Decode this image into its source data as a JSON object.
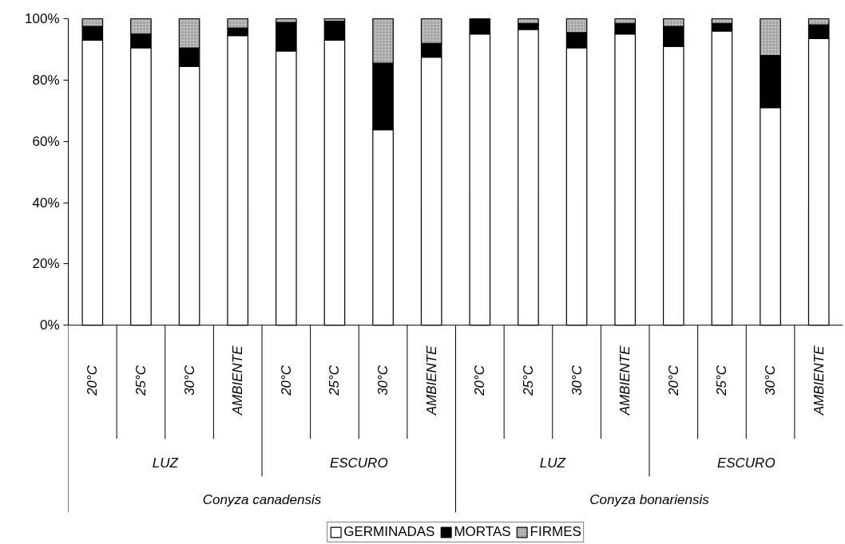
{
  "chart_data": {
    "type": "bar",
    "stacked": true,
    "categories": [
      "20°C",
      "25°C",
      "30°C",
      "AMBIENTE",
      "20°C",
      "25°C",
      "30°C",
      "AMBIENTE",
      "20°C",
      "25°C",
      "30°C",
      "AMBIENTE",
      "20°C",
      "25°C",
      "30°C",
      "AMBIENTE"
    ],
    "annotations": [
      "LUZ",
      "ESCURO",
      "LUZ",
      "ESCURO",
      "Conyza canadensis",
      "Conyza bonariensis"
    ],
    "series": [
      {
        "name": "GERMINADAS",
        "color": "#ffffff",
        "values": [
          93,
          90.5,
          84.5,
          94.5,
          89.5,
          93,
          63.8,
          87.5,
          95,
          96.5,
          90.5,
          95,
          91,
          96,
          71,
          93.5
        ]
      },
      {
        "name": "MORTAS",
        "color": "#000000",
        "values": [
          4.5,
          4.5,
          6,
          2.5,
          9.3,
          6.2,
          21.7,
          4.5,
          5,
          2,
          5,
          3.5,
          6.5,
          2.5,
          17,
          4.5
        ]
      },
      {
        "name": "FIRMES",
        "color": "#a6a6a6",
        "values": [
          2.5,
          5,
          9.5,
          3,
          1.2,
          0.8,
          14.5,
          8,
          null,
          1.5,
          4.5,
          1.5,
          2.5,
          1.5,
          12,
          2
        ]
      }
    ],
    "ylim": [
      0,
      100
    ],
    "yticks": [
      {
        "value": 0,
        "label": "0%"
      },
      {
        "value": 20,
        "label": "20%"
      },
      {
        "value": 40,
        "label": "40%"
      },
      {
        "value": 60,
        "label": "60%"
      },
      {
        "value": 80,
        "label": "80%"
      },
      {
        "value": 100,
        "label": "100%"
      }
    ],
    "grid": false,
    "legend": "bottom"
  }
}
